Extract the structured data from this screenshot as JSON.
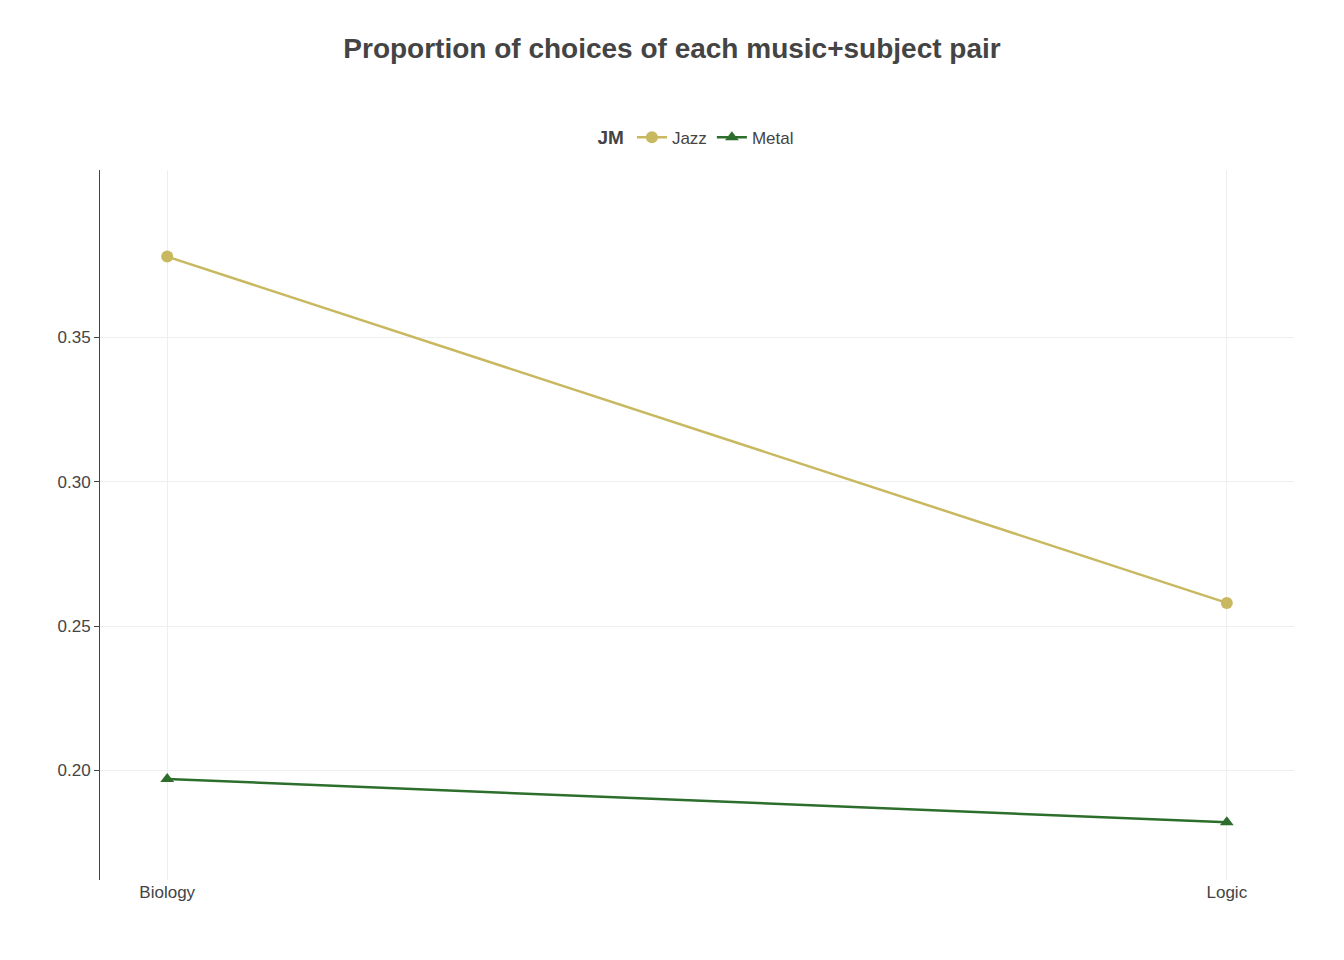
{
  "chart_data": {
    "type": "line",
    "title": "Proportion of choices of each music+subject pair",
    "legend_title": "JM",
    "categories": [
      "Biology",
      "Logic"
    ],
    "series": [
      {
        "name": "Jazz",
        "color": "#c8b860",
        "marker": "circle",
        "values": [
          0.378,
          0.258
        ]
      },
      {
        "name": "Metal",
        "color": "#2d6e2d",
        "marker": "triangle-up",
        "values": [
          0.197,
          0.182
        ]
      }
    ],
    "ylim": [
      0.162,
      0.408
    ],
    "yticks": [
      {
        "value": 0.2,
        "label": "0.20"
      },
      0.25,
      {
        "value": 0.3,
        "label": "0.30"
      },
      0.35
    ],
    "grid": true,
    "legend": "top"
  }
}
